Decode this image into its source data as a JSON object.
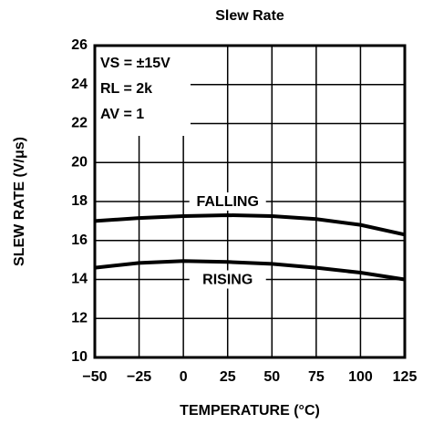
{
  "chart_data": {
    "type": "line",
    "title": "Slew Rate",
    "xlabel": "TEMPERATURE (°C)",
    "ylabel": "SLEW RATE (V/μs)",
    "annotations": [
      "VS = ±15V",
      "RL = 2k",
      "AV = 1"
    ],
    "x": [
      -50,
      -25,
      0,
      25,
      50,
      75,
      100,
      125
    ],
    "series": [
      {
        "name": "FALLING",
        "color": "#000000",
        "values": [
          17.0,
          17.15,
          17.25,
          17.3,
          17.25,
          17.1,
          16.8,
          16.3
        ]
      },
      {
        "name": "RISING",
        "color": "#000000",
        "values": [
          14.6,
          14.85,
          14.95,
          14.9,
          14.8,
          14.6,
          14.35,
          14.0
        ]
      }
    ],
    "xlim": [
      -50,
      125
    ],
    "xticks": [
      {
        "value": -50,
        "label": "−50"
      },
      {
        "value": -25,
        "label": "−25"
      },
      0,
      25,
      50,
      75,
      100,
      125
    ],
    "ylim": [
      10,
      26
    ],
    "yticks": [
      10,
      12,
      14,
      16,
      18,
      20,
      22,
      24,
      26
    ],
    "grid": true
  }
}
